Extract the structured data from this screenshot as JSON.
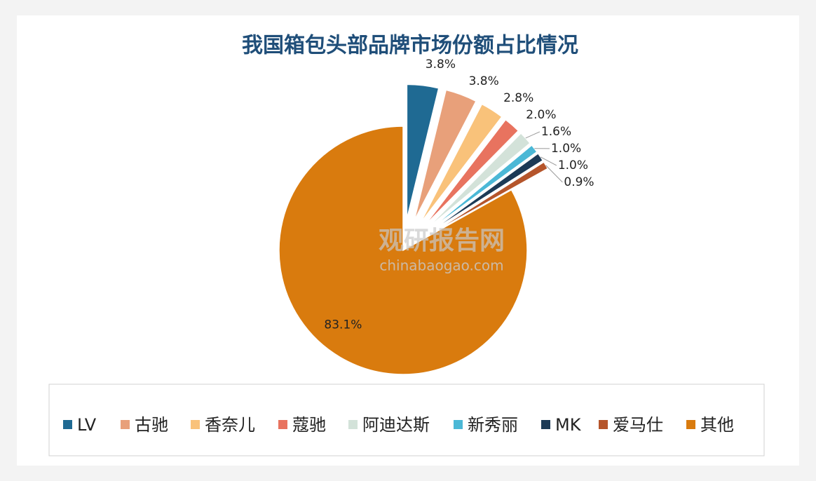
{
  "chart_data": {
    "type": "pie",
    "title": "我国箱包头部品牌市场份额占比情况",
    "categories": [
      "LV",
      "古驰",
      "香奈儿",
      "蔻驰",
      "阿迪达斯",
      "新秀丽",
      "MK",
      "爱马仕",
      "其他"
    ],
    "values": [
      3.8,
      3.8,
      2.8,
      2.0,
      1.6,
      1.0,
      1.0,
      0.9,
      83.1
    ],
    "value_labels": [
      "3.8%",
      "3.8%",
      "2.8%",
      "2.0%",
      "1.6%",
      "1.0%",
      "1.0%",
      "0.9%",
      "83.1%"
    ],
    "colors": [
      "#1f6a93",
      "#e8a07a",
      "#f9c27a",
      "#e8735f",
      "#d3e2d9",
      "#4bb8d6",
      "#1c3a56",
      "#b5552b",
      "#d97b0e"
    ],
    "legend": "bottom",
    "watermark": [
      "观研报告网",
      "chinabaogao.com"
    ]
  }
}
